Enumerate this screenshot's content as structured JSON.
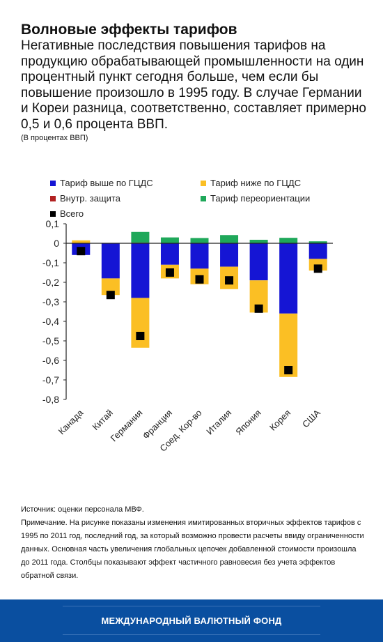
{
  "header": {
    "title": "Волновые эффекты тарифов",
    "subtitle": "Негативные последствия повышения тарифов на продукцию обрабатывающей промышленности на один процентный пункт сегодня больше, чем если бы повышение произошло в 1995 году. В случае Германии и Кореи  разница, соответственно, составляет примерно 0,5 и 0,6 процента ВВП.",
    "units": "(В процентах ВВП)"
  },
  "chart_data": {
    "type": "bar",
    "stacked": true,
    "categories": [
      "Канада",
      "Китай",
      "Германия",
      "Франция",
      "Соед. Кор-во",
      "Италия",
      "Япония",
      "Корея",
      "США"
    ],
    "series": [
      {
        "name": "Тариф выше по ГЦДС",
        "color": "#1515d4",
        "values": [
          -0.06,
          -0.18,
          -0.28,
          -0.11,
          -0.13,
          -0.12,
          -0.19,
          -0.36,
          -0.08
        ]
      },
      {
        "name": "Тариф ниже по ГЦДС",
        "color": "#fbbf24",
        "values": [
          0.015,
          -0.085,
          -0.255,
          -0.07,
          -0.08,
          -0.115,
          -0.165,
          -0.325,
          -0.06
        ]
      },
      {
        "name": "Внутр. защита",
        "color": "#b22222",
        "values": [
          0,
          0,
          0.003,
          0,
          0.002,
          0.002,
          0,
          0,
          0
        ]
      },
      {
        "name": "Тариф переориентации",
        "color": "#1fa85a",
        "values": [
          0,
          0,
          0.055,
          0.03,
          0.025,
          0.04,
          0.018,
          0.028,
          0.01
        ]
      }
    ],
    "total": {
      "name": "Всего",
      "values": [
        -0.04,
        -0.265,
        -0.475,
        -0.15,
        -0.185,
        -0.19,
        -0.335,
        -0.65,
        -0.13
      ]
    },
    "ylim": [
      -0.8,
      0.1
    ],
    "yticks": [
      "0,1",
      "0",
      "-0,1",
      "-0,2",
      "-0,3",
      "-0,4",
      "-0,5",
      "-0,6",
      "-0,7",
      "-0,8"
    ],
    "legend": "top",
    "grid": false
  },
  "notes": {
    "source": "Источник: оценки персонала МВФ.",
    "note": "Примечание. На рисунке показаны изменения имитированных вторичных эффектов тарифов с 1995 по 2011 год, последний год, за который возможно провести расчеты ввиду ограниченности данных. Основная часть увеличения глобальных цепочек добавленной стоимости произошла до 2011 года. Столбцы показывают эффект частичного равновесия без учета эффектов обратной связи."
  },
  "footer": {
    "org": "МЕЖДУНАРОДНЫЙ ВАЛЮТНЫЙ ФОНД"
  }
}
